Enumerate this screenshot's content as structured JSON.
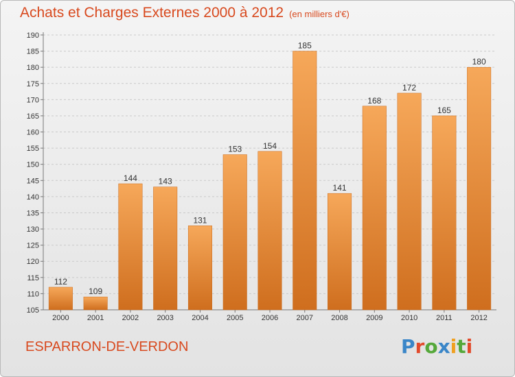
{
  "header": {
    "title": "Achats et Charges Externes 2000 à 2012",
    "unit": "(en milliers d'€)"
  },
  "footer": {
    "commune": "ESPARRON-DE-VERDON",
    "brand": "Proxiti",
    "brand_colors": [
      "#3a86c8",
      "#e24a2b",
      "#55a83a",
      "#3a86c8",
      "#f0a020",
      "#55a83a",
      "#e24a2b"
    ]
  },
  "colors": {
    "accent": "#d8491e",
    "bar_top": "#f6a85a",
    "bar_bottom": "#cf6e1e"
  },
  "chart_data": {
    "type": "bar",
    "title": "Achats et Charges Externes 2000 à 2012",
    "categories": [
      "2000",
      "2001",
      "2002",
      "2003",
      "2004",
      "2005",
      "2006",
      "2007",
      "2008",
      "2009",
      "2010",
      "2011",
      "2012"
    ],
    "values": [
      112,
      109,
      144,
      143,
      131,
      153,
      154,
      185,
      141,
      168,
      172,
      165,
      180
    ],
    "ylim": [
      105,
      190
    ],
    "yticks": [
      105,
      110,
      115,
      120,
      125,
      130,
      135,
      140,
      145,
      150,
      155,
      160,
      165,
      170,
      175,
      180,
      185,
      190
    ],
    "grid": true,
    "xlabel": "",
    "ylabel": ""
  }
}
